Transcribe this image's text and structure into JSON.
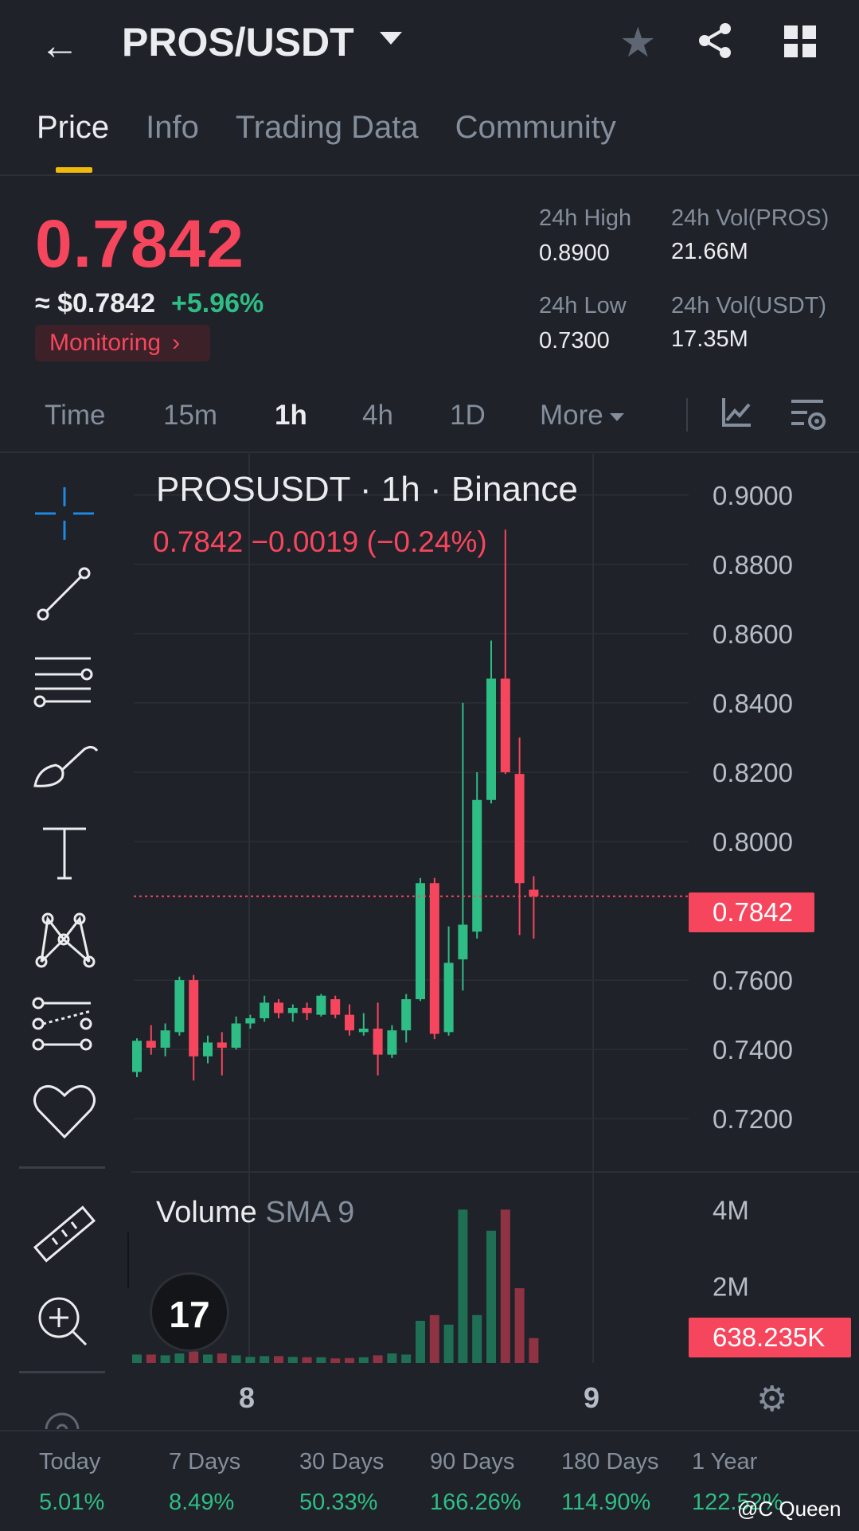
{
  "header": {
    "pair": "PROS/USDT",
    "back_icon": "arrow-left-icon",
    "favorite_icon": "star-icon",
    "share_icon": "share-icon",
    "menu_icon": "grid-icon"
  },
  "tabs": [
    {
      "label": "Price",
      "active": true
    },
    {
      "label": "Info",
      "active": false
    },
    {
      "label": "Trading Data",
      "active": false
    },
    {
      "label": "Community",
      "active": false
    }
  ],
  "ticker": {
    "price": "0.7842",
    "approx": "≈ $0.7842",
    "change": "+5.96%",
    "monitoring": "Monitoring",
    "high_label": "24h High",
    "high": "0.8900",
    "low_label": "24h Low",
    "low": "0.7300",
    "vol_base_label": "24h Vol(PROS)",
    "vol_base": "21.66M",
    "vol_quote_label": "24h Vol(USDT)",
    "vol_quote": "17.35M"
  },
  "intervals": [
    {
      "label": "Time",
      "active": false
    },
    {
      "label": "15m",
      "active": false
    },
    {
      "label": "1h",
      "active": true
    },
    {
      "label": "4h",
      "active": false
    },
    {
      "label": "1D",
      "active": false
    },
    {
      "label": "More",
      "active": false
    }
  ],
  "chart_legend": {
    "title": "PROSUSDT · 1h · Binance",
    "ohlc": "0.7842  −0.0019 (−0.24%)",
    "volume_label": "Volume",
    "volume_sma": "SMA 9",
    "price_tag": "0.7842",
    "volume_tag": "638.235K",
    "tv_logo": "17"
  },
  "colors": {
    "up": "#2ebd85",
    "down": "#f6465d",
    "vol_up": "#1f6f55",
    "vol_down": "#8f3343",
    "grid": "#2b2f36",
    "axis_text": "#b7bdc6"
  },
  "chart_data": {
    "type": "candlestick",
    "x_tick_labels": [
      "8",
      "9"
    ],
    "y_ticks": [
      "0.9000",
      "0.8800",
      "0.8600",
      "0.8400",
      "0.8200",
      "0.8000",
      "0.7600",
      "0.7400",
      "0.7200"
    ],
    "ylim": [
      0.712,
      0.905
    ],
    "volume_ticks": [
      "4M",
      "2M"
    ],
    "volume_ylim": [
      0,
      4.4
    ],
    "current_price": 0.7842,
    "candles": [
      {
        "o": 0.7335,
        "h": 0.7432,
        "l": 0.732,
        "c": 0.7425
      },
      {
        "o": 0.7425,
        "h": 0.747,
        "l": 0.7385,
        "c": 0.7405
      },
      {
        "o": 0.7405,
        "h": 0.7475,
        "l": 0.738,
        "c": 0.7455
      },
      {
        "o": 0.745,
        "h": 0.761,
        "l": 0.744,
        "c": 0.76
      },
      {
        "o": 0.76,
        "h": 0.7615,
        "l": 0.731,
        "c": 0.738
      },
      {
        "o": 0.738,
        "h": 0.744,
        "l": 0.736,
        "c": 0.742
      },
      {
        "o": 0.742,
        "h": 0.745,
        "l": 0.7325,
        "c": 0.7405
      },
      {
        "o": 0.7405,
        "h": 0.7495,
        "l": 0.74,
        "c": 0.7475
      },
      {
        "o": 0.7475,
        "h": 0.75,
        "l": 0.746,
        "c": 0.749
      },
      {
        "o": 0.749,
        "h": 0.7555,
        "l": 0.748,
        "c": 0.7535
      },
      {
        "o": 0.7535,
        "h": 0.7545,
        "l": 0.749,
        "c": 0.7505
      },
      {
        "o": 0.7505,
        "h": 0.753,
        "l": 0.748,
        "c": 0.752
      },
      {
        "o": 0.752,
        "h": 0.7535,
        "l": 0.7485,
        "c": 0.7505
      },
      {
        "o": 0.75,
        "h": 0.756,
        "l": 0.7495,
        "c": 0.7555
      },
      {
        "o": 0.7545,
        "h": 0.7555,
        "l": 0.749,
        "c": 0.75
      },
      {
        "o": 0.75,
        "h": 0.753,
        "l": 0.744,
        "c": 0.7455
      },
      {
        "o": 0.745,
        "h": 0.7505,
        "l": 0.744,
        "c": 0.746
      },
      {
        "o": 0.746,
        "h": 0.7535,
        "l": 0.7325,
        "c": 0.7385
      },
      {
        "o": 0.7385,
        "h": 0.747,
        "l": 0.7375,
        "c": 0.7455
      },
      {
        "o": 0.7455,
        "h": 0.756,
        "l": 0.742,
        "c": 0.7545
      },
      {
        "o": 0.7545,
        "h": 0.7895,
        "l": 0.754,
        "c": 0.788
      },
      {
        "o": 0.788,
        "h": 0.7895,
        "l": 0.743,
        "c": 0.7445
      },
      {
        "o": 0.745,
        "h": 0.7755,
        "l": 0.744,
        "c": 0.765
      },
      {
        "o": 0.766,
        "h": 0.84,
        "l": 0.757,
        "c": 0.776
      },
      {
        "o": 0.774,
        "h": 0.82,
        "l": 0.772,
        "c": 0.812
      },
      {
        "o": 0.812,
        "h": 0.858,
        "l": 0.811,
        "c": 0.847
      },
      {
        "o": 0.847,
        "h": 0.89,
        "l": 0.8195,
        "c": 0.82
      },
      {
        "o": 0.8195,
        "h": 0.83,
        "l": 0.773,
        "c": 0.788
      },
      {
        "o": 0.7861,
        "h": 0.79,
        "l": 0.772,
        "c": 0.7842
      }
    ],
    "volume_m": [
      0.22,
      0.22,
      0.2,
      0.25,
      0.3,
      0.22,
      0.25,
      0.2,
      0.16,
      0.18,
      0.18,
      0.16,
      0.15,
      0.15,
      0.12,
      0.13,
      0.15,
      0.2,
      0.25,
      0.22,
      1.1,
      1.25,
      1.0,
      4.0,
      1.25,
      3.45,
      4.0,
      1.95,
      0.65
    ]
  },
  "x_axis_settings_icon": "gear-icon",
  "periods": [
    {
      "label": "Today",
      "value": "5.01%"
    },
    {
      "label": "7 Days",
      "value": "8.49%"
    },
    {
      "label": "30 Days",
      "value": "50.33%"
    },
    {
      "label": "90 Days",
      "value": "166.26%"
    },
    {
      "label": "180 Days",
      "value": "114.90%"
    },
    {
      "label": "1 Year",
      "value": "122.52%"
    }
  ],
  "watermark": "@C Queen"
}
